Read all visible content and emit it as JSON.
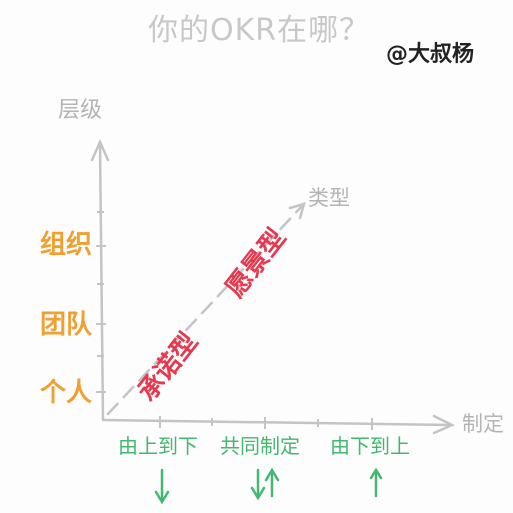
{
  "title": "你的OKR在哪？",
  "author": "@大叔杨",
  "axes": {
    "y_label": "层级",
    "x_label": "制定",
    "diagonal_label": "类型"
  },
  "levels": [
    "组织",
    "团队",
    "个人"
  ],
  "methods": [
    {
      "label": "由上到下",
      "arrow": "↓"
    },
    {
      "label": "共同制定",
      "arrow": "↓↑"
    },
    {
      "label": "由下到上",
      "arrow": "↑"
    }
  ],
  "types": {
    "committed": "承诺型",
    "aspirational": "愿景型"
  },
  "colors": {
    "axis": "#c4c4c4",
    "title": "#c8c8c8",
    "levels": "#f0a030",
    "methods": "#43b86e",
    "types": "#e8384f"
  }
}
